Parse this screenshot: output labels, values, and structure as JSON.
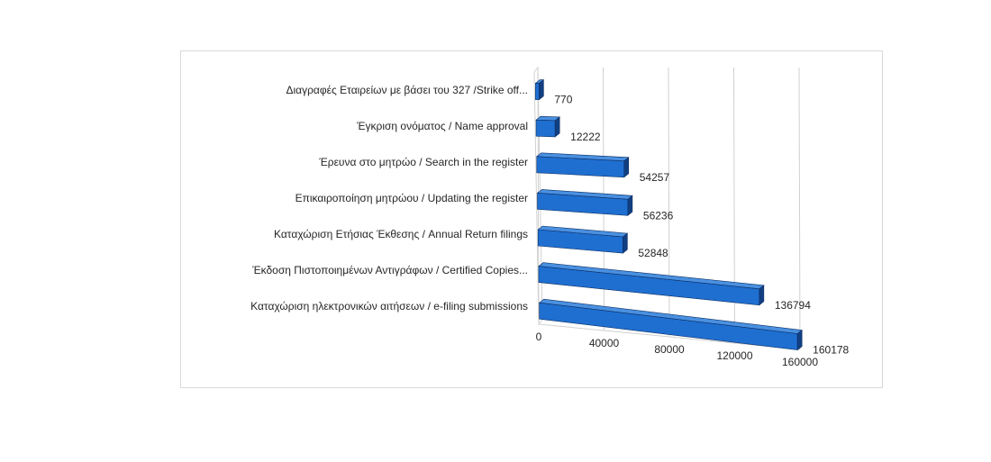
{
  "chart_data": {
    "type": "bar",
    "orientation": "horizontal",
    "style": "3d-cylinder-box",
    "categories": [
      "Διαγραφές Εταιρείων  με  βάσει του 327 /Strike off...",
      "Έγκριση ονόματος / Name approval",
      "Έρευνα στο μητρώο / Search in the register",
      "Επικαιροποίηση μητρώου / Updating the register",
      "Καταχώριση Ετήσιας Έκθεσης / Annual Return filings",
      "Έκδοση Πιστοποιημένων Αντιγράφων  / Certified Copies...",
      "Καταχώριση ηλεκτρονικών αιτήσεων / e-filing submissions"
    ],
    "values": [
      770,
      12222,
      54257,
      56236,
      52848,
      136794,
      160178
    ],
    "data_labels": [
      "770",
      "12222",
      "54257",
      "56236",
      "52848",
      "136794",
      "160178"
    ],
    "x_ticks": [
      "0",
      "40000",
      "80000",
      "120000",
      "160000"
    ],
    "xlim": [
      0,
      160000
    ],
    "grid": true,
    "legend": "none",
    "colors": {
      "bar_front": "#1f6fd1",
      "bar_top": "#4a90e0",
      "bar_side": "#123f82",
      "bar_edge": "#0b2f66"
    }
  }
}
